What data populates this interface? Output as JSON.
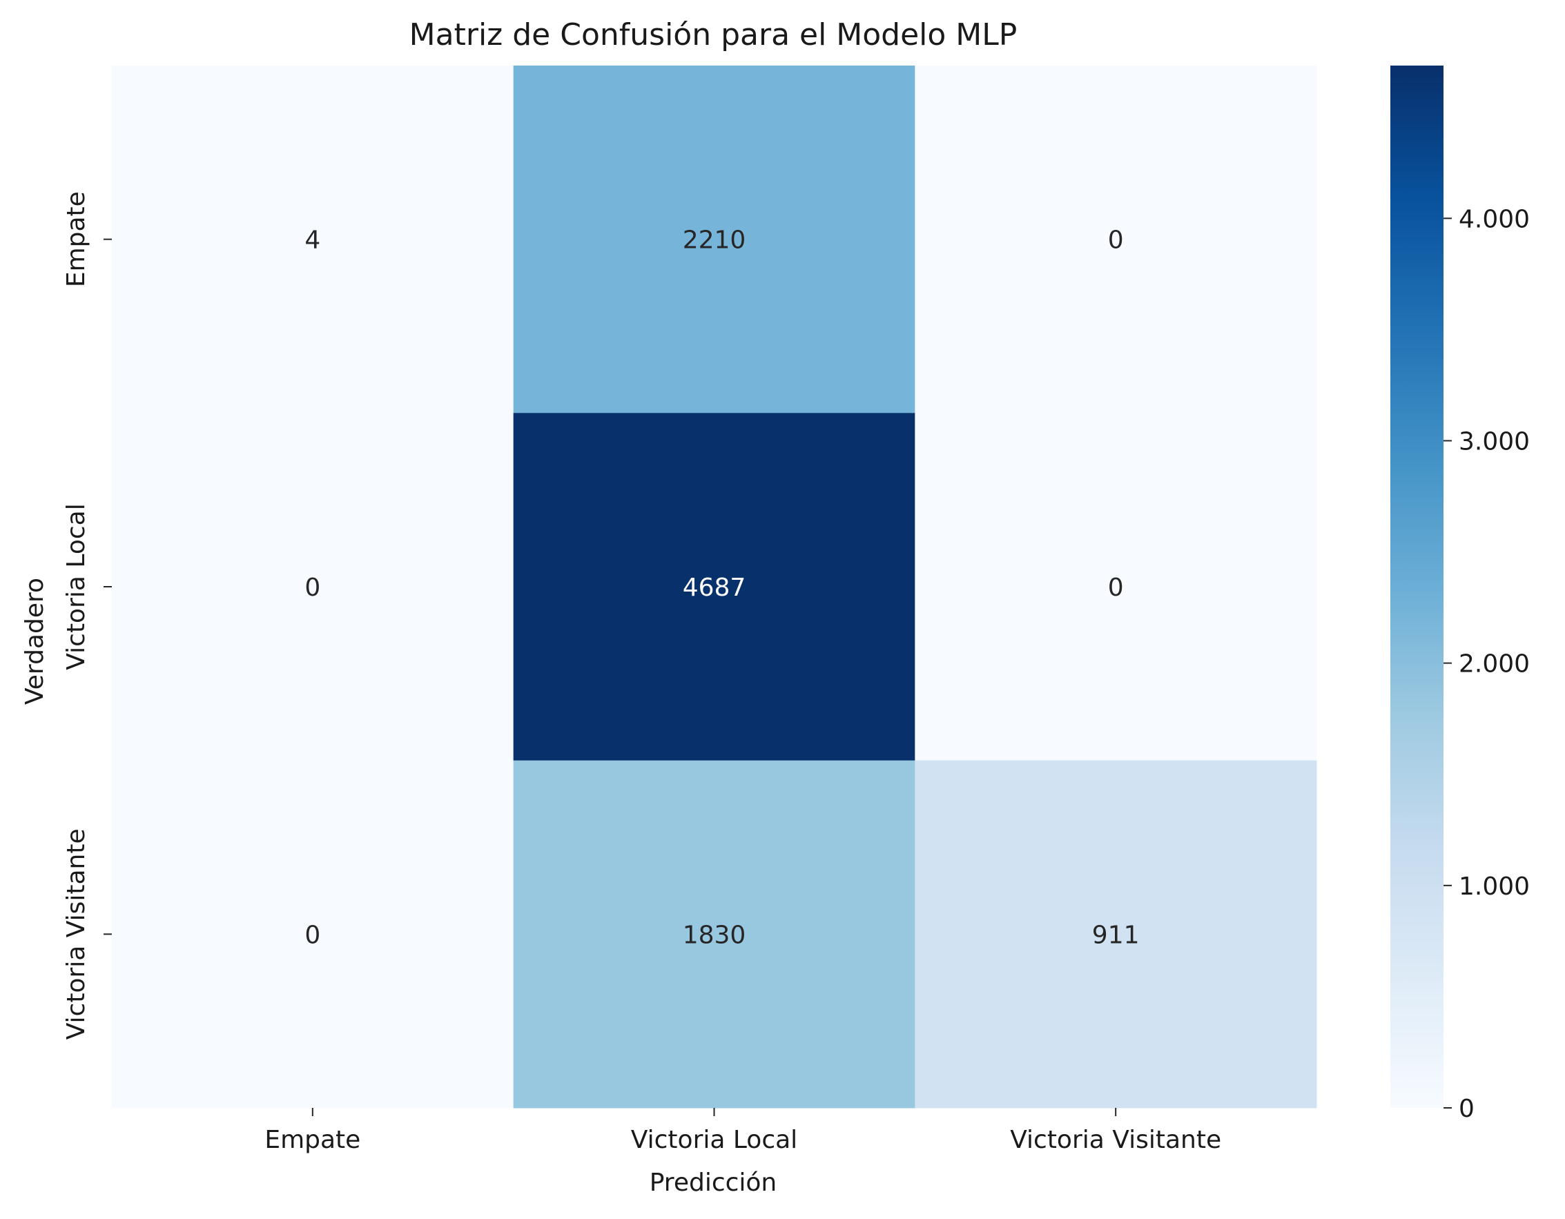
{
  "chart_data": {
    "type": "heatmap",
    "title": "Matriz de Confusión para el Modelo MLP",
    "xlabel": "Predicción",
    "ylabel": "Verdadero",
    "x_categories": [
      "Empate",
      "Victoria Local",
      "Victoria Visitante"
    ],
    "y_categories": [
      "Empate",
      "Victoria Local",
      "Victoria Visitante"
    ],
    "values": [
      [
        4,
        2210,
        0
      ],
      [
        0,
        4687,
        0
      ],
      [
        0,
        1830,
        911
      ]
    ],
    "colormap": "Blues",
    "color_range": [
      0,
      4687
    ],
    "colorbar_ticks": [
      0,
      1000,
      2000,
      3000,
      4000
    ],
    "colorbar_tick_labels": [
      "0",
      "1.000",
      "2.000",
      "3.000",
      "4.000"
    ],
    "colorbar_placement": "right",
    "grid": false
  }
}
